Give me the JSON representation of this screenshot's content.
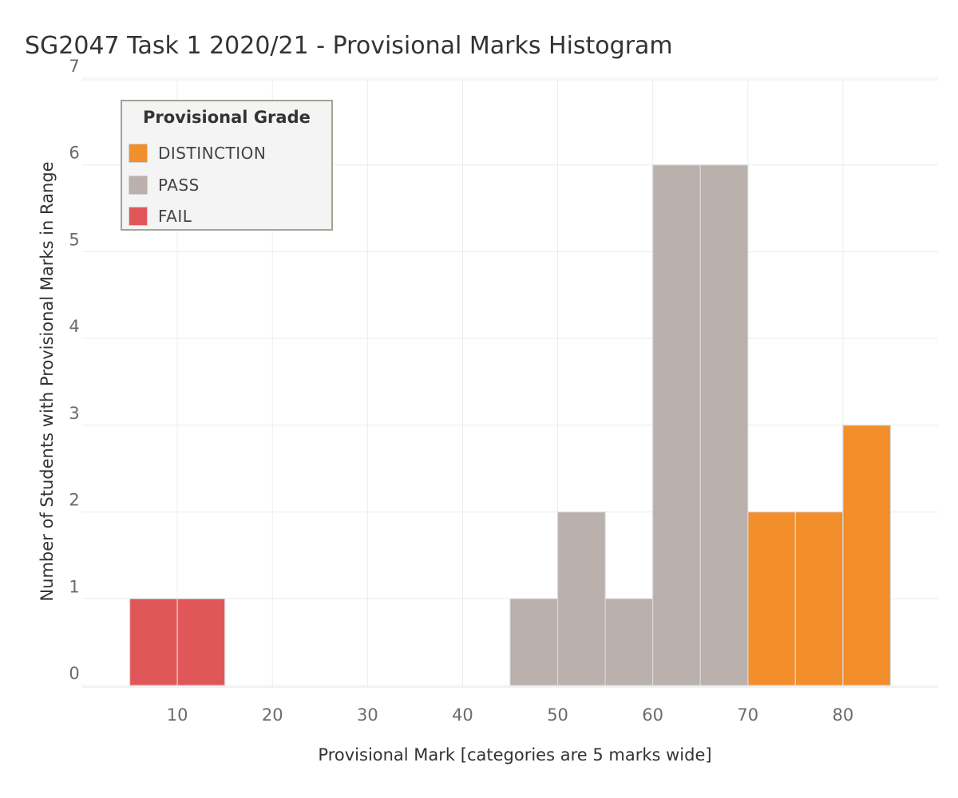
{
  "chart_data": {
    "type": "bar",
    "title": "SG2047 Task 1 2020/21 - Provisional Marks Histogram",
    "xlabel": "Provisional Mark [categories are 5 marks wide]",
    "ylabel": "Number of Students with Provisional Marks in Range",
    "xlim": [
      0,
      90
    ],
    "ylim": [
      0,
      7
    ],
    "x_ticks": [
      10,
      20,
      30,
      40,
      50,
      60,
      70,
      80
    ],
    "y_ticks": [
      0,
      1,
      2,
      3,
      4,
      5,
      6,
      7
    ],
    "bin_width": 5,
    "grid": true,
    "legend_title": "Provisional Grade",
    "legend_position": "top-left",
    "series": [
      {
        "name": "DISTINCTION",
        "color": "#f28e2b",
        "bins": [
          [
            70,
            75
          ],
          [
            75,
            80
          ],
          [
            80,
            85
          ]
        ],
        "values": [
          2,
          2,
          3
        ]
      },
      {
        "name": "PASS",
        "color": "#bab0ac",
        "bins": [
          [
            45,
            50
          ],
          [
            50,
            55
          ],
          [
            55,
            60
          ],
          [
            60,
            65
          ],
          [
            65,
            70
          ]
        ],
        "values": [
          1,
          2,
          1,
          6,
          6
        ]
      },
      {
        "name": "FAIL",
        "color": "#e15759",
        "bins": [
          [
            5,
            10
          ],
          [
            10,
            15
          ]
        ],
        "values": [
          1,
          1
        ]
      }
    ]
  }
}
